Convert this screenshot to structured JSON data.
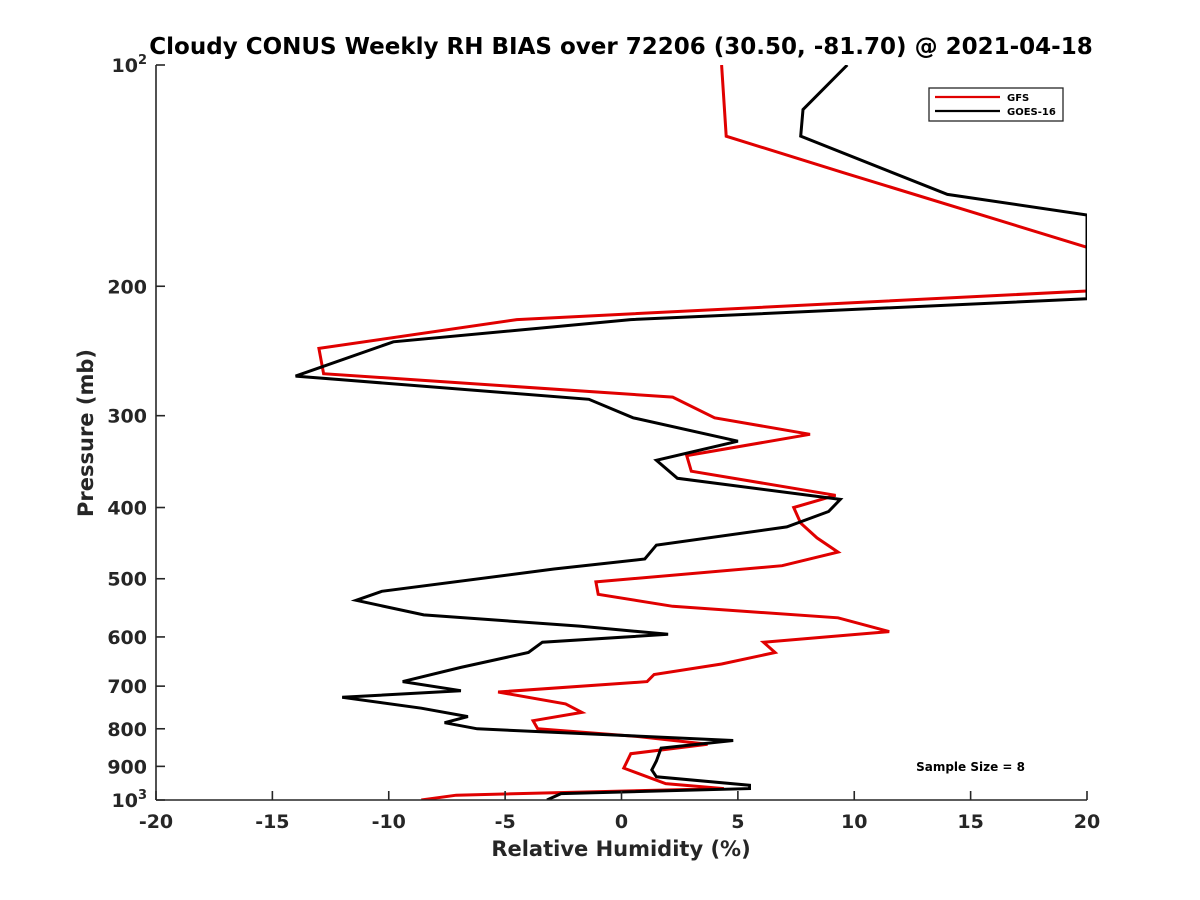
{
  "chart_data": {
    "type": "line",
    "title": "Cloudy CONUS Weekly RH BIAS over 72206 (30.50, -81.70) @ 2021-04-18",
    "xlabel": "Relative Humidity (%)",
    "ylabel": "Pressure (mb)",
    "xlim": [
      -20,
      20
    ],
    "ylim": [
      100,
      1000
    ],
    "yscale": "log",
    "yreversed": true,
    "grid": false,
    "legend_position": "top-right",
    "x_ticks": [
      -20,
      -15,
      -10,
      -5,
      0,
      5,
      10,
      15,
      20
    ],
    "x_tick_labels": [
      "-20",
      "-15",
      "-10",
      "-5",
      "0",
      "5",
      "10",
      "15",
      "20"
    ],
    "y_ticks": [
      {
        "value": 100,
        "base": "10",
        "exp": "2"
      },
      {
        "value": 200,
        "label": "200"
      },
      {
        "value": 300,
        "label": "300"
      },
      {
        "value": 400,
        "label": "400"
      },
      {
        "value": 500,
        "label": "500"
      },
      {
        "value": 600,
        "label": "600"
      },
      {
        "value": 700,
        "label": "700"
      },
      {
        "value": 800,
        "label": "800"
      },
      {
        "value": 900,
        "label": "900"
      },
      {
        "value": 1000,
        "base": "10",
        "exp": "3"
      }
    ],
    "series": [
      {
        "name": "GFS",
        "color": "#e00000",
        "points": [
          [
            4.3,
            100
          ],
          [
            4.5,
            125
          ],
          [
            9.5,
            140
          ],
          [
            20,
            177
          ],
          [
            20,
            203
          ],
          [
            -4.5,
            222
          ],
          [
            -13.0,
            243
          ],
          [
            -12.8,
            263
          ],
          [
            2.2,
            283
          ],
          [
            4.0,
            302
          ],
          [
            8.1,
            318
          ],
          [
            2.8,
            340
          ],
          [
            3.0,
            357
          ],
          [
            9.2,
            385
          ],
          [
            7.4,
            400
          ],
          [
            7.7,
            420
          ],
          [
            8.4,
            440
          ],
          [
            9.3,
            460
          ],
          [
            6.9,
            480
          ],
          [
            -1.1,
            505
          ],
          [
            -1.0,
            525
          ],
          [
            2.2,
            545
          ],
          [
            9.3,
            565
          ],
          [
            11.5,
            590
          ],
          [
            6.1,
            610
          ],
          [
            6.6,
            630
          ],
          [
            4.3,
            653
          ],
          [
            1.4,
            675
          ],
          [
            1.1,
            690
          ],
          [
            -5.3,
            713
          ],
          [
            -2.4,
            740
          ],
          [
            -1.7,
            760
          ],
          [
            -3.8,
            780
          ],
          [
            -3.6,
            800
          ],
          [
            0.8,
            820
          ],
          [
            3.7,
            840
          ],
          [
            0.4,
            865
          ],
          [
            0.1,
            905
          ],
          [
            1.9,
            950
          ],
          [
            4.4,
            965
          ],
          [
            -7.1,
            985
          ],
          [
            -8.6,
            1000
          ]
        ]
      },
      {
        "name": "GOES-16",
        "color": "#000000",
        "points": [
          [
            9.7,
            100
          ],
          [
            7.8,
            115
          ],
          [
            7.7,
            125
          ],
          [
            14.0,
            150
          ],
          [
            20,
            160
          ],
          [
            20,
            208
          ],
          [
            0.4,
            222
          ],
          [
            -9.8,
            238
          ],
          [
            -14.0,
            265
          ],
          [
            -1.4,
            285
          ],
          [
            0.5,
            302
          ],
          [
            5.0,
            325
          ],
          [
            1.5,
            345
          ],
          [
            2.4,
            365
          ],
          [
            9.4,
            390
          ],
          [
            8.9,
            405
          ],
          [
            7.1,
            425
          ],
          [
            1.5,
            450
          ],
          [
            1.0,
            470
          ],
          [
            -2.9,
            485
          ],
          [
            -10.3,
            520
          ],
          [
            -11.4,
            535
          ],
          [
            -8.5,
            560
          ],
          [
            -1.8,
            580
          ],
          [
            2.0,
            595
          ],
          [
            -3.4,
            610
          ],
          [
            -4.0,
            630
          ],
          [
            -6.9,
            660
          ],
          [
            -9.4,
            690
          ],
          [
            -6.9,
            710
          ],
          [
            -12.0,
            725
          ],
          [
            -8.6,
            750
          ],
          [
            -6.6,
            770
          ],
          [
            -7.6,
            785
          ],
          [
            -6.2,
            800
          ],
          [
            4.8,
            830
          ],
          [
            1.7,
            850
          ],
          [
            1.5,
            885
          ],
          [
            1.3,
            910
          ],
          [
            1.5,
            930
          ],
          [
            5.5,
            955
          ],
          [
            5.5,
            965
          ],
          [
            -2.6,
            980
          ],
          [
            -3.2,
            1000
          ]
        ]
      }
    ],
    "annotation": "Sample Size = 8"
  },
  "colors": {
    "axis": "#262626",
    "gfs": "#e00000",
    "goes": "#000000",
    "background": "#ffffff"
  }
}
